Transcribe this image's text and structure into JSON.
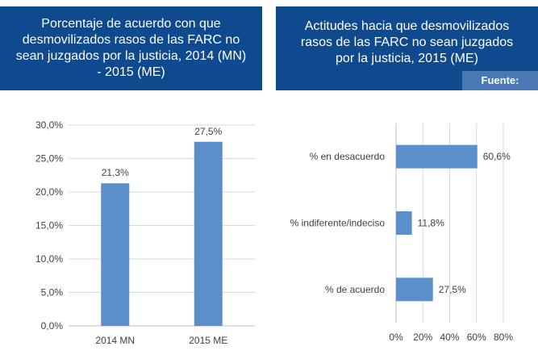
{
  "panels": {
    "left": {
      "title": "Porcentaje de acuerdo con que desmovilizados rasos de las FARC no sean juzgados por la justicia, 2014 (MN) - 2015 (ME)"
    },
    "right": {
      "title": "Actitudes hacia que desmovilizados rasos de las FARC no sean juzgados por la justicia, 2015 (ME)",
      "source": "Fuente: LAPOP"
    }
  },
  "colors": {
    "header": "#104a8e",
    "badge": "#4a78b4",
    "bar": "#5b8fcb",
    "grid": "#d9d9d9"
  },
  "chart_data": [
    {
      "type": "bar",
      "orientation": "vertical",
      "categories": [
        "2014 MN",
        "2015 ME"
      ],
      "values": [
        21.3,
        27.5
      ],
      "value_labels": [
        "21,3%",
        "27,5%"
      ],
      "ylim": [
        0,
        30
      ],
      "y_ticks": [
        0,
        5,
        10,
        15,
        20,
        25,
        30
      ],
      "y_tick_labels": [
        "0,0%",
        "5,0%",
        "10,0%",
        "15,0%",
        "20,0%",
        "25,0%",
        "30,0%"
      ],
      "grid": true
    },
    {
      "type": "bar",
      "orientation": "horizontal",
      "categories": [
        "% en desacuerdo",
        "% indiferente/indeciso",
        "% de acuerdo"
      ],
      "values": [
        60.6,
        11.8,
        27.5
      ],
      "value_labels": [
        "60,6%",
        "11,8%",
        "27,5%"
      ],
      "xlim": [
        0,
        80
      ],
      "x_ticks": [
        0,
        20,
        40,
        60,
        80
      ],
      "x_tick_labels": [
        "0%",
        "20%",
        "40%",
        "60%",
        "80%"
      ],
      "grid": true
    }
  ]
}
